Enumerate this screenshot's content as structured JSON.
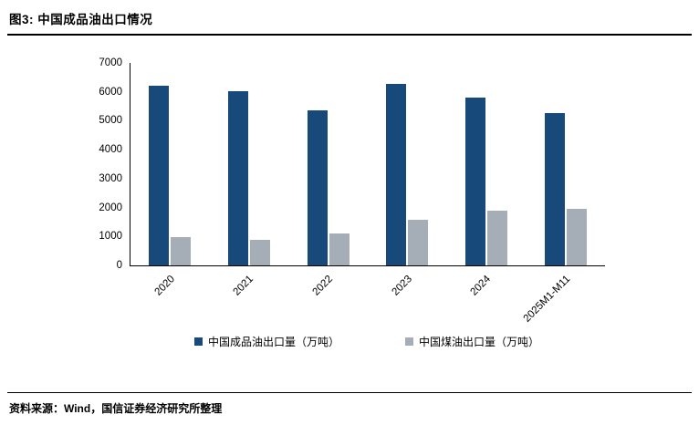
{
  "header": {
    "title": "图3: 中国成品油出口情况"
  },
  "footer": {
    "source": "资料来源：Wind，国信证券经济研究所整理"
  },
  "colors": {
    "series1": "#17497b",
    "series2": "#a5adb6",
    "axis": "#000000"
  },
  "chart_data": {
    "type": "bar",
    "title": "中国成品油出口情况",
    "categories": [
      "2020",
      "2021",
      "2022",
      "2023",
      "2024",
      "2025M1-M11"
    ],
    "series": [
      {
        "name": "中国成品油出口量（万吨）",
        "color": "#17497b",
        "values": [
          6200,
          6030,
          5370,
          6270,
          5810,
          5270
        ]
      },
      {
        "name": "中国煤油出口量（万吨）",
        "color": "#a5adb6",
        "values": [
          980,
          870,
          1090,
          1580,
          1900,
          1950
        ]
      }
    ],
    "xlabel": "",
    "ylabel": "",
    "ylim": [
      0,
      7000
    ],
    "ytick_step": 1000,
    "grid": false,
    "legend_position": "bottom"
  }
}
